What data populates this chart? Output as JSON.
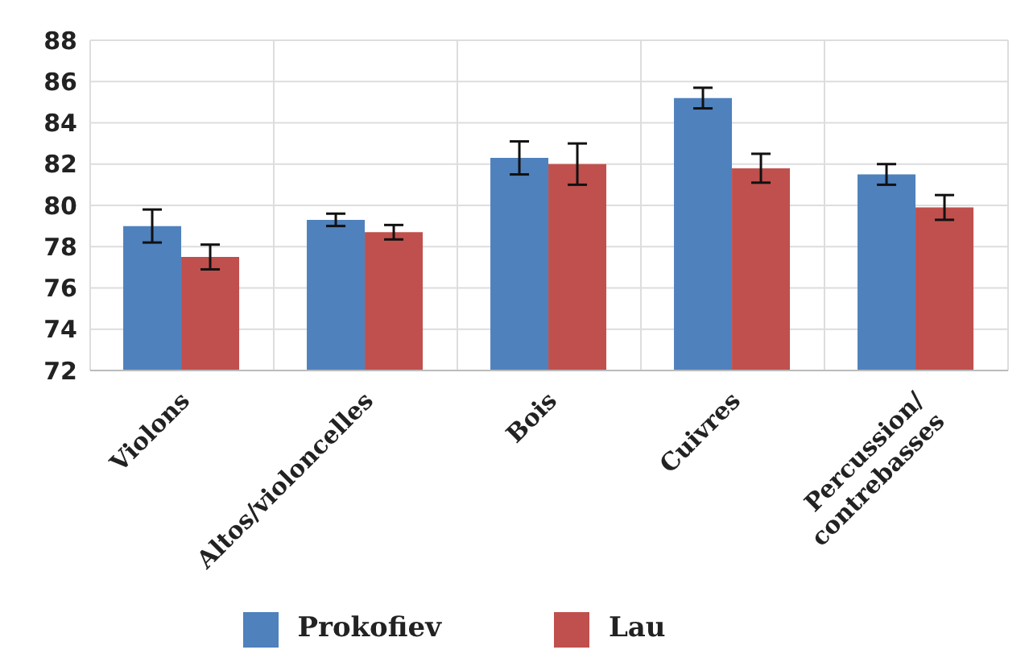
{
  "chart_data": {
    "type": "bar",
    "categories": [
      "Violons",
      "Altos/violoncelles",
      "Bois",
      "Cuivres",
      "Percussion/\ncontrebasses"
    ],
    "series": [
      {
        "name": "Prokofiev",
        "color": "#4f81bd",
        "values": [
          79.0,
          79.3,
          82.3,
          85.2,
          81.5
        ],
        "errors": [
          0.8,
          0.3,
          0.8,
          0.5,
          0.5
        ]
      },
      {
        "name": "Lau",
        "color": "#c0504d",
        "values": [
          77.5,
          78.7,
          82.0,
          81.8,
          79.9
        ],
        "errors": [
          0.6,
          0.35,
          1.0,
          0.7,
          0.6
        ]
      }
    ],
    "ylim": [
      72,
      88
    ],
    "yticks": [
      72,
      74,
      76,
      78,
      80,
      82,
      84,
      86,
      88
    ],
    "grid": true,
    "legend": "bottom"
  }
}
